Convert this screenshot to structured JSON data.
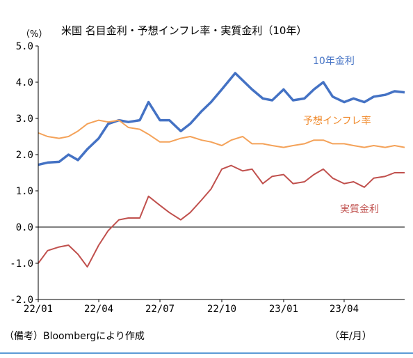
{
  "chart_data": {
    "type": "line",
    "title": "米国 名目金利・予想インフレ率・実質金利（10年）",
    "unit_label": "（%）",
    "ylim": [
      -2.0,
      5.0
    ],
    "yticks": [
      "5.0",
      "4.0",
      "3.0",
      "2.0",
      "1.0",
      "0.0",
      "-1.0",
      "-2.0"
    ],
    "xlim": [
      "2022-01-01",
      "2023-06-30"
    ],
    "xtick_labels": [
      "22/01",
      "22/04",
      "22/07",
      "22/10",
      "23/01",
      "23/04"
    ],
    "xtick_dates": [
      "2022-01-01",
      "2022-04-01",
      "2022-07-01",
      "2022-10-01",
      "2023-01-01",
      "2023-04-01"
    ],
    "source_note": "（備考）Bloombergにより作成",
    "period_note": "（年/月）",
    "series": [
      {
        "name": "10年金利",
        "color": "#4472c4",
        "points": [
          [
            "2022-01-01",
            1.72
          ],
          [
            "2022-01-15",
            1.78
          ],
          [
            "2022-02-01",
            1.8
          ],
          [
            "2022-02-15",
            2.0
          ],
          [
            "2022-03-01",
            1.85
          ],
          [
            "2022-03-15",
            2.15
          ],
          [
            "2022-04-01",
            2.45
          ],
          [
            "2022-04-15",
            2.85
          ],
          [
            "2022-05-01",
            2.95
          ],
          [
            "2022-05-15",
            2.9
          ],
          [
            "2022-06-01",
            2.95
          ],
          [
            "2022-06-14",
            3.45
          ],
          [
            "2022-07-01",
            2.95
          ],
          [
            "2022-07-15",
            2.95
          ],
          [
            "2022-08-01",
            2.65
          ],
          [
            "2022-08-15",
            2.85
          ],
          [
            "2022-09-01",
            3.2
          ],
          [
            "2022-09-15",
            3.45
          ],
          [
            "2022-10-01",
            3.8
          ],
          [
            "2022-10-21",
            4.25
          ],
          [
            "2022-11-01",
            4.05
          ],
          [
            "2022-11-15",
            3.8
          ],
          [
            "2022-12-01",
            3.55
          ],
          [
            "2022-12-15",
            3.5
          ],
          [
            "2023-01-01",
            3.8
          ],
          [
            "2023-01-15",
            3.5
          ],
          [
            "2023-02-01",
            3.55
          ],
          [
            "2023-02-15",
            3.8
          ],
          [
            "2023-03-01",
            4.0
          ],
          [
            "2023-03-15",
            3.6
          ],
          [
            "2023-04-01",
            3.45
          ],
          [
            "2023-04-15",
            3.55
          ],
          [
            "2023-05-01",
            3.45
          ],
          [
            "2023-05-15",
            3.6
          ],
          [
            "2023-06-01",
            3.65
          ],
          [
            "2023-06-15",
            3.75
          ],
          [
            "2023-06-30",
            3.72
          ]
        ]
      },
      {
        "name": "予想インフレ率",
        "color": "#f4a259",
        "points": [
          [
            "2022-01-01",
            2.6
          ],
          [
            "2022-01-15",
            2.5
          ],
          [
            "2022-02-01",
            2.45
          ],
          [
            "2022-02-15",
            2.5
          ],
          [
            "2022-03-01",
            2.65
          ],
          [
            "2022-03-15",
            2.85
          ],
          [
            "2022-04-01",
            2.95
          ],
          [
            "2022-04-15",
            2.9
          ],
          [
            "2022-05-01",
            2.95
          ],
          [
            "2022-05-15",
            2.75
          ],
          [
            "2022-06-01",
            2.7
          ],
          [
            "2022-06-15",
            2.55
          ],
          [
            "2022-07-01",
            2.35
          ],
          [
            "2022-07-15",
            2.35
          ],
          [
            "2022-08-01",
            2.45
          ],
          [
            "2022-08-15",
            2.5
          ],
          [
            "2022-09-01",
            2.4
          ],
          [
            "2022-09-15",
            2.35
          ],
          [
            "2022-10-01",
            2.25
          ],
          [
            "2022-10-15",
            2.4
          ],
          [
            "2022-11-01",
            2.5
          ],
          [
            "2022-11-15",
            2.3
          ],
          [
            "2022-12-01",
            2.3
          ],
          [
            "2022-12-15",
            2.25
          ],
          [
            "2023-01-01",
            2.2
          ],
          [
            "2023-01-15",
            2.25
          ],
          [
            "2023-02-01",
            2.3
          ],
          [
            "2023-02-15",
            2.4
          ],
          [
            "2023-03-01",
            2.4
          ],
          [
            "2023-03-15",
            2.3
          ],
          [
            "2023-04-01",
            2.3
          ],
          [
            "2023-04-15",
            2.25
          ],
          [
            "2023-05-01",
            2.2
          ],
          [
            "2023-05-15",
            2.25
          ],
          [
            "2023-06-01",
            2.2
          ],
          [
            "2023-06-15",
            2.25
          ],
          [
            "2023-06-30",
            2.2
          ]
        ]
      },
      {
        "name": "実質金利",
        "color": "#c0504d",
        "points": [
          [
            "2022-01-01",
            -1.0
          ],
          [
            "2022-01-15",
            -0.65
          ],
          [
            "2022-02-01",
            -0.55
          ],
          [
            "2022-02-15",
            -0.5
          ],
          [
            "2022-03-01",
            -0.75
          ],
          [
            "2022-03-15",
            -1.1
          ],
          [
            "2022-04-01",
            -0.5
          ],
          [
            "2022-04-15",
            -0.1
          ],
          [
            "2022-05-01",
            0.2
          ],
          [
            "2022-05-15",
            0.25
          ],
          [
            "2022-06-01",
            0.25
          ],
          [
            "2022-06-14",
            0.85
          ],
          [
            "2022-07-01",
            0.6
          ],
          [
            "2022-07-15",
            0.4
          ],
          [
            "2022-08-01",
            0.2
          ],
          [
            "2022-08-15",
            0.4
          ],
          [
            "2022-09-01",
            0.75
          ],
          [
            "2022-09-15",
            1.05
          ],
          [
            "2022-10-01",
            1.6
          ],
          [
            "2022-10-15",
            1.7
          ],
          [
            "2022-11-01",
            1.55
          ],
          [
            "2022-11-15",
            1.6
          ],
          [
            "2022-12-01",
            1.2
          ],
          [
            "2022-12-15",
            1.4
          ],
          [
            "2023-01-01",
            1.45
          ],
          [
            "2023-01-15",
            1.2
          ],
          [
            "2023-02-01",
            1.25
          ],
          [
            "2023-02-15",
            1.45
          ],
          [
            "2023-03-01",
            1.6
          ],
          [
            "2023-03-15",
            1.35
          ],
          [
            "2023-04-01",
            1.2
          ],
          [
            "2023-04-15",
            1.25
          ],
          [
            "2023-05-01",
            1.1
          ],
          [
            "2023-05-15",
            1.35
          ],
          [
            "2023-06-01",
            1.4
          ],
          [
            "2023-06-15",
            1.5
          ],
          [
            "2023-06-30",
            1.5
          ]
        ]
      }
    ]
  }
}
